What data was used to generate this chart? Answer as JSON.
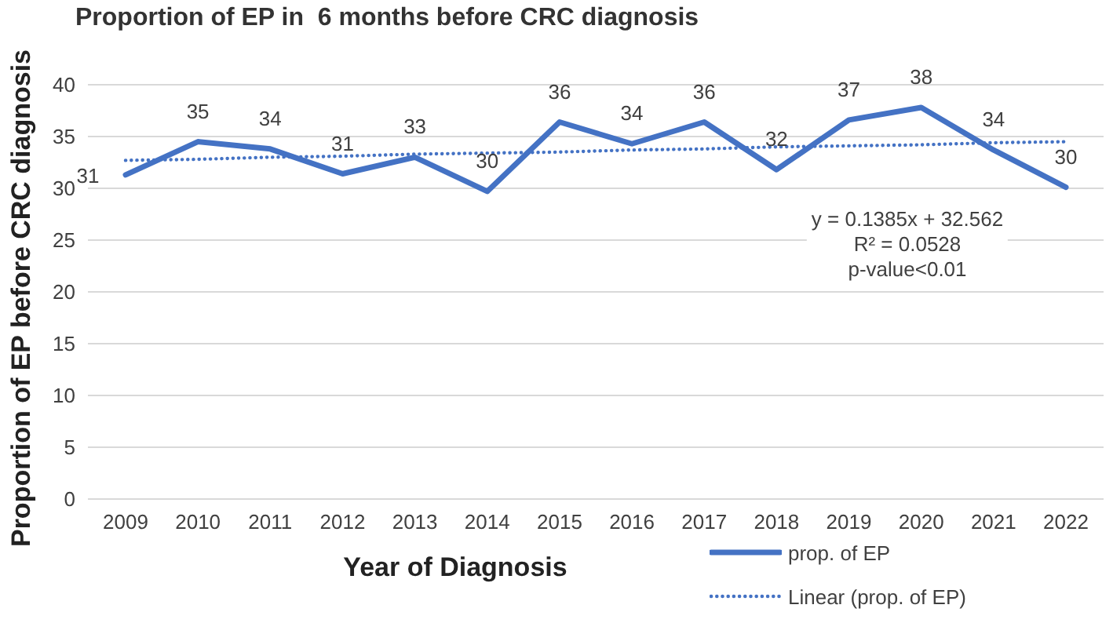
{
  "chart_data": {
    "type": "line",
    "title": "Proportion of EP in  6 months before CRC diagnosis",
    "xlabel": "Year of Diagnosis",
    "ylabel": "Proportion of EP before CRC diagnosis",
    "categories": [
      "2009",
      "2010",
      "2011",
      "2012",
      "2013",
      "2014",
      "2015",
      "2016",
      "2017",
      "2018",
      "2019",
      "2020",
      "2021",
      "2022"
    ],
    "series": [
      {
        "name": "prop. of EP",
        "color": "#4472c4",
        "line_style": "solid",
        "values": [
          31.3,
          34.5,
          33.8,
          31.4,
          33.0,
          29.7,
          36.4,
          34.3,
          36.4,
          31.8,
          36.6,
          37.8,
          33.7,
          30.1
        ],
        "value_labels": [
          "31",
          "35",
          "34",
          "31",
          "33",
          "30",
          "36",
          "34",
          "36",
          "32",
          "37",
          "38",
          "34",
          "30"
        ]
      },
      {
        "name": "Linear (prop. of EP)",
        "color": "#4472c4",
        "line_style": "dotted",
        "values": [
          32.7,
          32.8,
          33.0,
          33.1,
          33.3,
          33.4,
          33.5,
          33.7,
          33.8,
          34.0,
          34.1,
          34.2,
          34.4,
          34.5
        ]
      }
    ],
    "ylim": [
      0,
      40
    ],
    "yticks": [
      0,
      5,
      10,
      15,
      20,
      25,
      30,
      35,
      40
    ],
    "grid": "y",
    "legend": "bottom right",
    "marker": "none",
    "annotations": [
      "y = 0.1385x + 32.562",
      "R² = 0.0528",
      "p-value<0.01"
    ]
  }
}
